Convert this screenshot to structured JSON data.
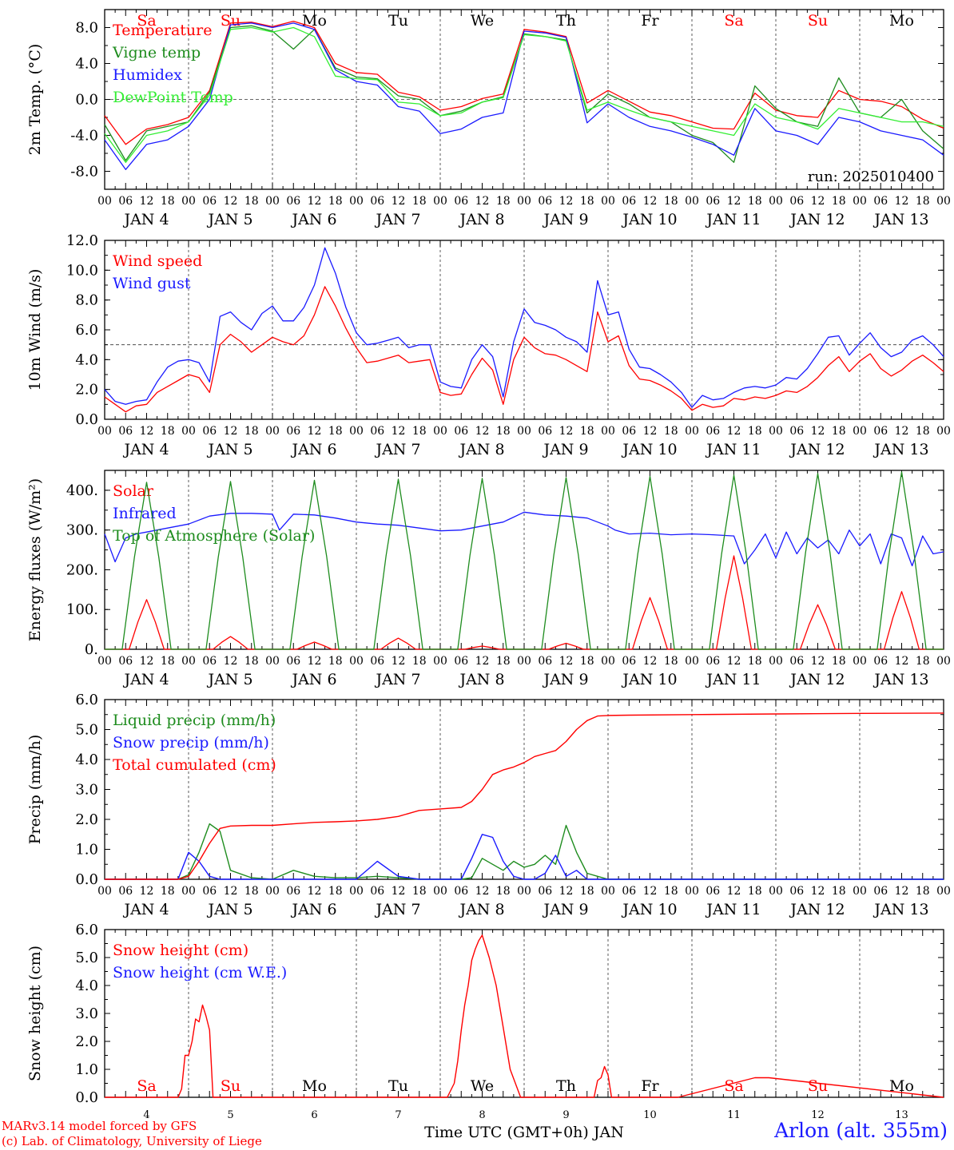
{
  "footer": {
    "credit_line1": "MARv3.14 model forced by GFS",
    "credit_line2": "(c) Lab. of Climatology, University of Liege",
    "station": "Arlon (alt. 355m)",
    "xaxis_title": "Time UTC (GMT+0h) JAN"
  },
  "colors": {
    "red": "#ff0000",
    "green": "#1e8c1e",
    "blue": "#1a1aff",
    "lightgreen": "#33ee33",
    "axis": "#000000"
  },
  "chart_data": [
    {
      "type": "line",
      "ylabel": "2m Temp. (°C)",
      "ylim": [
        -10,
        10
      ],
      "yticks": [
        "-8.0",
        "-4.0",
        "0.0",
        "4.0",
        "8.0"
      ],
      "ytick_values": [
        -8,
        -4,
        0,
        4,
        8
      ],
      "ref_line": 0,
      "day_labels": [
        "Sa",
        "Su",
        "Mo",
        "Tu",
        "We",
        "Th",
        "Fr",
        "Sa",
        "Su",
        "Mo"
      ],
      "weekend_days": [
        0,
        1,
        7,
        8
      ],
      "date_labels": [
        "JAN  4",
        "JAN  5",
        "JAN  6",
        "JAN  7",
        "JAN  8",
        "JAN  9",
        "JAN 10",
        "JAN 11",
        "JAN 12",
        "JAN 13"
      ],
      "hour_labels": [
        "00",
        "06",
        "12",
        "18"
      ],
      "note": "run: 2025010400",
      "x_hours": [
        0,
        6,
        12,
        18,
        24,
        30,
        36,
        42,
        48,
        54,
        60,
        66,
        72,
        78,
        84,
        90,
        96,
        102,
        108,
        114,
        120,
        126,
        132,
        138,
        144,
        150,
        156,
        162,
        168,
        174,
        180,
        186,
        192,
        198,
        204,
        210,
        216,
        222,
        228,
        234,
        240
      ],
      "series": [
        {
          "name": "Temperature",
          "color": "#ff0000",
          "values": [
            -1.8,
            -5.0,
            -3.3,
            -2.8,
            -2.0,
            1.0,
            8.5,
            8.6,
            8.1,
            8.7,
            8.0,
            4.0,
            3.0,
            2.8,
            0.8,
            0.3,
            -1.2,
            -0.8,
            0.1,
            0.6,
            7.8,
            7.5,
            7.0,
            -0.4,
            1.0,
            -0.2,
            -1.4,
            -1.8,
            -2.5,
            -3.2,
            -3.3,
            0.7,
            -1.2,
            -1.8,
            -2.0,
            1.0,
            0.0,
            -0.2,
            -0.8,
            -2.2,
            -3.2
          ]
        },
        {
          "name": "Vigne temp",
          "color": "#1e8c1e",
          "values": [
            -2.8,
            -6.8,
            -3.5,
            -3.0,
            -2.5,
            0.8,
            8.0,
            8.2,
            7.6,
            5.6,
            7.8,
            3.5,
            2.5,
            2.3,
            0.4,
            0.0,
            -1.8,
            -1.3,
            -0.3,
            0.3,
            7.3,
            7.0,
            6.6,
            -1.5,
            0.6,
            -0.5,
            -2.0,
            -2.5,
            -4.0,
            -4.8,
            -7.0,
            1.5,
            -1.0,
            -2.5,
            -3.0,
            2.4,
            -1.5,
            -2.0,
            0.0,
            -3.5,
            -5.5
          ]
        },
        {
          "name": "Humidex",
          "color": "#1a1aff",
          "values": [
            -4.5,
            -7.8,
            -5.0,
            -4.5,
            -3.0,
            0.0,
            8.3,
            8.5,
            8.0,
            8.5,
            7.8,
            3.3,
            2.0,
            1.6,
            -0.8,
            -1.3,
            -3.8,
            -3.3,
            -2.0,
            -1.5,
            7.6,
            7.4,
            6.9,
            -2.6,
            -0.5,
            -2.0,
            -3.0,
            -3.5,
            -4.2,
            -5.0,
            -6.2,
            -1.0,
            -3.5,
            -4.0,
            -5.0,
            -2.0,
            -2.5,
            -3.5,
            -4.0,
            -4.5,
            -6.2
          ]
        },
        {
          "name": "DewPoint Temp",
          "color": "#33ee33",
          "values": [
            -3.8,
            -7.0,
            -4.0,
            -3.5,
            -2.5,
            0.5,
            7.8,
            8.0,
            7.5,
            8.0,
            7.0,
            2.6,
            2.3,
            2.2,
            -0.3,
            -0.5,
            -1.8,
            -1.5,
            -0.3,
            0.2,
            7.2,
            7.0,
            6.5,
            -1.2,
            -0.3,
            -1.2,
            -2.0,
            -2.5,
            -3.0,
            -3.5,
            -4.0,
            -0.5,
            -2.0,
            -2.5,
            -3.3,
            -1.0,
            -1.5,
            -2.0,
            -2.5,
            -2.5,
            -3.0
          ]
        }
      ]
    },
    {
      "type": "line",
      "ylabel": "10m Wind (m/s)",
      "ylim": [
        0,
        12
      ],
      "yticks": [
        "0.0",
        "2.0",
        "4.0",
        "6.0",
        "8.0",
        "10.0",
        "12.0"
      ],
      "ytick_values": [
        0,
        2,
        4,
        6,
        8,
        10,
        12
      ],
      "ref_line": 5,
      "date_labels": [
        "JAN  4",
        "JAN  5",
        "JAN  6",
        "JAN  7",
        "JAN  8",
        "JAN  9",
        "JAN 10",
        "JAN 11",
        "JAN 12",
        "JAN 13"
      ],
      "hour_labels": [
        "00",
        "06",
        "12",
        "18"
      ],
      "x_hours": [
        0,
        3,
        6,
        9,
        12,
        15,
        18,
        21,
        24,
        27,
        30,
        33,
        36,
        39,
        42,
        45,
        48,
        51,
        54,
        57,
        60,
        63,
        66,
        69,
        72,
        75,
        78,
        81,
        84,
        87,
        90,
        93,
        96,
        99,
        102,
        105,
        108,
        111,
        114,
        117,
        120,
        123,
        126,
        129,
        132,
        135,
        138,
        141,
        144,
        147,
        150,
        153,
        156,
        159,
        162,
        165,
        168,
        171,
        174,
        177,
        180,
        183,
        186,
        189,
        192,
        195,
        198,
        201,
        204,
        207,
        210,
        213,
        216,
        219,
        222,
        225,
        228,
        231,
        234,
        237,
        240
      ],
      "series": [
        {
          "name": "Wind speed",
          "color": "#ff0000",
          "values": [
            1.5,
            1.0,
            0.5,
            0.9,
            1.0,
            1.8,
            2.2,
            2.6,
            3.0,
            2.8,
            1.8,
            5.0,
            5.7,
            5.2,
            4.5,
            5.0,
            5.5,
            5.2,
            5.0,
            5.6,
            7.0,
            8.9,
            7.6,
            6.1,
            4.8,
            3.8,
            3.9,
            4.1,
            4.3,
            3.8,
            3.9,
            4.0,
            1.8,
            1.6,
            1.7,
            3.0,
            4.1,
            3.3,
            1.0,
            4.0,
            5.5,
            4.8,
            4.4,
            4.3,
            4.0,
            3.6,
            3.2,
            7.2,
            5.2,
            5.6,
            3.6,
            2.7,
            2.6,
            2.3,
            1.9,
            1.4,
            0.6,
            1.0,
            0.8,
            0.9,
            1.4,
            1.3,
            1.5,
            1.4,
            1.6,
            1.9,
            1.8,
            2.2,
            2.8,
            3.6,
            4.2,
            3.2,
            3.9,
            4.4,
            3.4,
            2.9,
            3.3,
            3.9,
            4.3,
            3.8,
            3.2
          ]
        },
        {
          "name": "Wind gust",
          "color": "#1a1aff",
          "values": [
            2.0,
            1.2,
            1.0,
            1.2,
            1.3,
            2.5,
            3.5,
            3.9,
            4.0,
            3.8,
            2.5,
            6.9,
            7.2,
            6.5,
            6.0,
            7.1,
            7.6,
            6.6,
            6.6,
            7.5,
            9.0,
            11.5,
            9.8,
            7.5,
            5.8,
            5.0,
            5.1,
            5.3,
            5.5,
            4.8,
            5.0,
            5.0,
            2.5,
            2.2,
            2.1,
            4.0,
            5.0,
            4.2,
            1.5,
            5.2,
            7.4,
            6.5,
            6.3,
            6.0,
            5.5,
            5.2,
            4.5,
            9.3,
            7.0,
            7.2,
            4.7,
            3.5,
            3.4,
            3.0,
            2.5,
            1.8,
            0.8,
            1.6,
            1.3,
            1.4,
            1.8,
            2.1,
            2.2,
            2.1,
            2.3,
            2.8,
            2.7,
            3.4,
            4.4,
            5.5,
            5.6,
            4.3,
            5.1,
            5.8,
            4.8,
            4.2,
            4.5,
            5.3,
            5.6,
            5.0,
            4.2
          ]
        }
      ]
    },
    {
      "type": "line",
      "ylabel": "Energy fluxes (W/m²)",
      "ylim": [
        0,
        450
      ],
      "yticks": [
        "0.",
        "100.",
        "200.",
        "300.",
        "400."
      ],
      "ytick_values": [
        0,
        100,
        200,
        300,
        400
      ],
      "date_labels": [
        "JAN  4",
        "JAN  5",
        "JAN  6",
        "JAN  7",
        "JAN  8",
        "JAN  9",
        "JAN 10",
        "JAN 11",
        "JAN 12",
        "JAN 13"
      ],
      "hour_labels": [
        "00",
        "06",
        "12",
        "18"
      ],
      "solar_noon_peaks": {
        "Solar": [
          125,
          32,
          18,
          28,
          8,
          15,
          130,
          235,
          112,
          145
        ],
        "Top of Atmosphere (Solar)": [
          420,
          422,
          425,
          428,
          430,
          432,
          435,
          438,
          442,
          446
        ]
      },
      "x_hours_infrared": [
        0,
        3,
        6,
        9,
        12,
        15,
        18,
        21,
        24,
        30,
        36,
        42,
        48,
        50,
        54,
        60,
        66,
        72,
        78,
        84,
        90,
        96,
        102,
        108,
        114,
        120,
        126,
        132,
        138,
        144,
        146,
        150,
        156,
        162,
        168,
        174,
        180,
        183,
        186,
        189,
        192,
        195,
        198,
        201,
        204,
        207,
        210,
        213,
        216,
        219,
        222,
        225,
        228,
        231,
        234,
        237,
        240
      ],
      "series": [
        {
          "name": "Solar",
          "color": "#ff0000",
          "kind": "diurnal"
        },
        {
          "name": "Infrared",
          "color": "#1a1aff",
          "values": [
            290,
            220,
            280,
            290,
            295,
            300,
            305,
            310,
            315,
            335,
            342,
            342,
            340,
            300,
            340,
            338,
            330,
            320,
            315,
            312,
            305,
            298,
            300,
            310,
            320,
            345,
            338,
            335,
            330,
            310,
            300,
            290,
            292,
            288,
            290,
            288,
            285,
            215,
            250,
            290,
            230,
            295,
            240,
            280,
            255,
            275,
            240,
            300,
            260,
            290,
            215,
            290,
            280,
            210,
            285,
            240,
            245
          ]
        },
        {
          "name": "Top of Atmosphere (Solar)",
          "color": "#1e8c1e",
          "kind": "diurnal"
        }
      ]
    },
    {
      "type": "line",
      "ylabel": "Precip (mm/h)",
      "ylim": [
        0,
        6
      ],
      "yticks": [
        "0.0",
        "1.0",
        "2.0",
        "3.0",
        "4.0",
        "5.0",
        "6.0"
      ],
      "ytick_values": [
        0,
        1,
        2,
        3,
        4,
        5,
        6
      ],
      "date_labels": [
        "JAN  4",
        "JAN  5",
        "JAN  6",
        "JAN  7",
        "JAN  8",
        "JAN  9",
        "JAN 10",
        "JAN 11",
        "JAN 12",
        "JAN 13"
      ],
      "hour_labels": [
        "00",
        "06",
        "12",
        "18"
      ],
      "x_hours": [
        0,
        6,
        12,
        18,
        21,
        24,
        27,
        30,
        33,
        36,
        42,
        48,
        54,
        60,
        66,
        72,
        78,
        84,
        90,
        96,
        102,
        105,
        108,
        111,
        114,
        117,
        120,
        123,
        126,
        129,
        132,
        135,
        138,
        141,
        144,
        150,
        168,
        192,
        216,
        240
      ],
      "series": [
        {
          "name": "Liquid precip (mm/h)",
          "color": "#1e8c1e",
          "values": [
            0,
            0,
            0,
            0,
            0,
            0.15,
            0.9,
            1.85,
            1.6,
            0.3,
            0.05,
            0,
            0.3,
            0.1,
            0.05,
            0.05,
            0.1,
            0.05,
            0,
            0,
            0,
            0.05,
            0.7,
            0.5,
            0.3,
            0.6,
            0.4,
            0.5,
            0.8,
            0.5,
            1.8,
            0.9,
            0.2,
            0.1,
            0,
            0,
            0,
            0,
            0,
            0
          ]
        },
        {
          "name": "Snow precip (mm/h)",
          "color": "#1a1aff",
          "values": [
            0,
            0,
            0,
            0,
            0,
            0.9,
            0.6,
            0.1,
            0,
            0,
            0,
            0,
            0,
            0,
            0,
            0,
            0.6,
            0.1,
            0,
            0,
            0,
            0.7,
            1.5,
            1.4,
            0.6,
            0.1,
            0,
            0,
            0.2,
            0.8,
            0.1,
            0.3,
            0,
            0,
            0,
            0,
            0,
            0,
            0,
            0
          ]
        },
        {
          "name": "Total cumulated (cm)",
          "color": "#ff0000",
          "values": [
            0,
            0,
            0,
            0,
            0,
            0.1,
            0.6,
            1.2,
            1.7,
            1.78,
            1.8,
            1.8,
            1.85,
            1.9,
            1.92,
            1.95,
            2.0,
            2.1,
            2.3,
            2.35,
            2.4,
            2.6,
            3.0,
            3.5,
            3.65,
            3.75,
            3.9,
            4.1,
            4.2,
            4.3,
            4.6,
            5.0,
            5.3,
            5.45,
            5.47,
            5.48,
            5.5,
            5.52,
            5.54,
            5.55
          ]
        }
      ]
    },
    {
      "type": "line",
      "ylabel": "Snow height (cm)",
      "ylim": [
        0,
        6
      ],
      "yticks": [
        "0.0",
        "1.0",
        "2.0",
        "3.0",
        "4.0",
        "5.0",
        "6.0"
      ],
      "ytick_values": [
        0,
        1,
        2,
        3,
        4,
        5,
        6
      ],
      "day_labels": [
        "Sa",
        "Su",
        "Mo",
        "Tu",
        "We",
        "Th",
        "Fr",
        "Sa",
        "Su",
        "Mo"
      ],
      "weekend_days": [
        0,
        1,
        7,
        8
      ],
      "date_numbers": [
        "4",
        "5",
        "6",
        "7",
        "8",
        "9",
        "10",
        "11",
        "12",
        "13"
      ],
      "x_hours": [
        0,
        21,
        22,
        23,
        24,
        25,
        26,
        27,
        28,
        29,
        30,
        31,
        34,
        98,
        100,
        101,
        102,
        103,
        104,
        105,
        106,
        107,
        108,
        110,
        112,
        114,
        116,
        119,
        120,
        140,
        141,
        142,
        143,
        144,
        145,
        164,
        186,
        190,
        240
      ],
      "series": [
        {
          "name": "Snow height (cm)",
          "color": "#ff0000",
          "values": [
            0,
            0,
            0.3,
            1.5,
            1.5,
            2.0,
            2.8,
            2.7,
            3.3,
            2.9,
            2.4,
            0,
            0,
            0,
            0.5,
            1.3,
            2.4,
            3.3,
            4.0,
            4.9,
            5.3,
            5.6,
            5.8,
            5.0,
            4.0,
            2.5,
            1.0,
            0,
            0,
            0,
            0.6,
            0.7,
            1.1,
            0.8,
            0,
            0,
            0.7,
            0.7,
            0
          ]
        },
        {
          "name": "Snow height (cm W.E.)",
          "color": "#1a1aff",
          "values": []
        }
      ]
    }
  ]
}
